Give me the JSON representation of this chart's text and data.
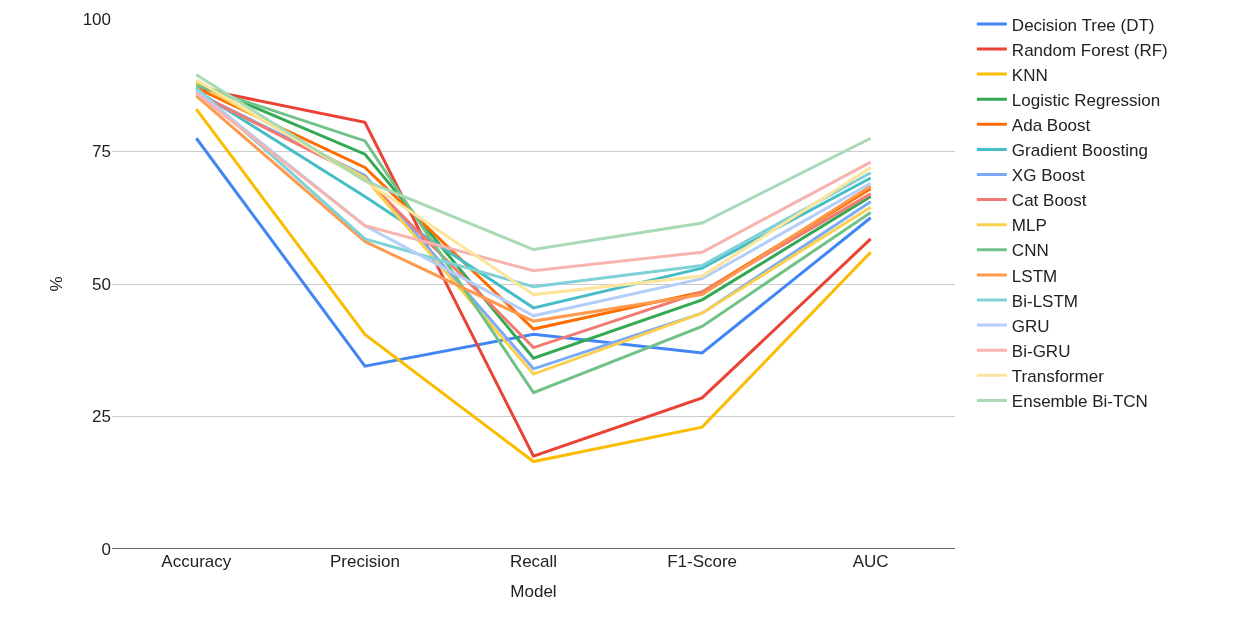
{
  "chart_data": {
    "type": "line",
    "xlabel": "Model",
    "ylabel": "%",
    "categories": [
      "Accuracy",
      "Precision",
      "Recall",
      "F1-Score",
      "AUC"
    ],
    "ylim": [
      0,
      100
    ],
    "yticks": [
      0,
      25,
      50,
      75,
      100
    ],
    "grid": "y",
    "legend": "right",
    "marker": "none",
    "line_style": "solid",
    "series": [
      {
        "name": "Decision Tree (DT)",
        "color": "#4285f4",
        "values": [
          77.5,
          34.5,
          40.5,
          37,
          62.5
        ]
      },
      {
        "name": "Random Forest (RF)",
        "color": "#ea4335",
        "values": [
          87,
          80.5,
          17.5,
          28.5,
          58.5
        ]
      },
      {
        "name": "KNN",
        "color": "#fbbc04",
        "values": [
          83,
          40.5,
          16.5,
          23,
          56
        ]
      },
      {
        "name": "Logistic Regression",
        "color": "#34a853",
        "values": [
          88,
          74.5,
          36,
          47,
          66.5
        ]
      },
      {
        "name": "Ada Boost",
        "color": "#ff6d01",
        "values": [
          87,
          72,
          41.5,
          48.5,
          68
        ]
      },
      {
        "name": "Gradient Boosting",
        "color": "#46bdc6",
        "values": [
          86.5,
          66.5,
          45.5,
          53,
          70
        ]
      },
      {
        "name": "XG Boost",
        "color": "#7baaf7",
        "values": [
          86,
          70.5,
          34,
          44.5,
          65.5
        ]
      },
      {
        "name": "Cat Boost",
        "color": "#f07b72",
        "values": [
          86,
          70,
          38,
          48.5,
          67
        ]
      },
      {
        "name": "MLP",
        "color": "#fcd04f",
        "values": [
          88,
          70,
          33,
          44.5,
          64.5
        ]
      },
      {
        "name": "CNN",
        "color": "#71c287",
        "values": [
          87.5,
          77,
          29.5,
          42,
          63.5
        ]
      },
      {
        "name": "LSTM",
        "color": "#ff994d",
        "values": [
          85.5,
          58,
          43,
          48,
          68.5
        ]
      },
      {
        "name": "Bi-LSTM",
        "color": "#7ed1d7",
        "values": [
          87,
          58.5,
          49.5,
          53.5,
          71
        ]
      },
      {
        "name": "GRU",
        "color": "#b3cefb",
        "values": [
          86.5,
          61,
          44,
          51,
          69
        ]
      },
      {
        "name": "Bi-GRU",
        "color": "#f7b4ae",
        "values": [
          86,
          61,
          52.5,
          56,
          73
        ]
      },
      {
        "name": "Transformer",
        "color": "#fde49b",
        "values": [
          88.5,
          69.5,
          48,
          51.5,
          72
        ]
      },
      {
        "name": "Ensemble Bi-TCN",
        "color": "#a8dab5",
        "values": [
          89.5,
          69.5,
          56.5,
          61.5,
          77.5
        ]
      }
    ]
  }
}
